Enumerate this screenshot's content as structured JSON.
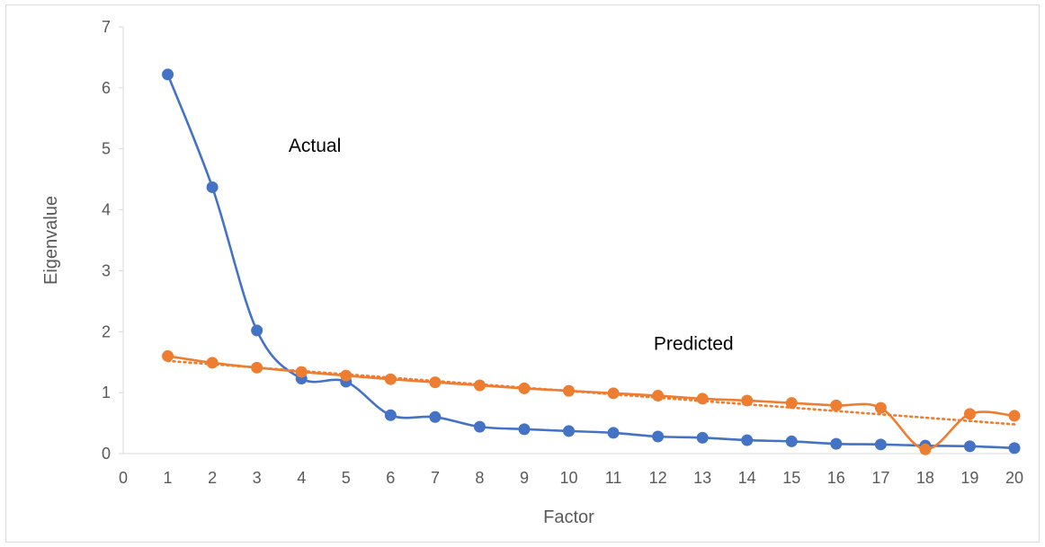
{
  "chart_data": {
    "type": "line",
    "xlabel": "Factor",
    "ylabel": "Eigenvalue",
    "xlim": [
      0,
      20
    ],
    "ylim": [
      0,
      7
    ],
    "x_ticks": [
      "0",
      "1",
      "2",
      "3",
      "4",
      "5",
      "6",
      "7",
      "8",
      "9",
      "10",
      "11",
      "12",
      "13",
      "14",
      "15",
      "16",
      "17",
      "18",
      "19",
      "20"
    ],
    "y_ticks": [
      "0",
      "1",
      "2",
      "3",
      "4",
      "5",
      "6",
      "7"
    ],
    "legend": "none",
    "grid": false,
    "x": [
      1,
      2,
      3,
      4,
      5,
      6,
      7,
      8,
      9,
      10,
      11,
      12,
      13,
      14,
      15,
      16,
      17,
      18,
      19,
      20
    ],
    "series": [
      {
        "color": "#4472c4",
        "smooth": true,
        "values": [
          6.22,
          4.37,
          2.02,
          1.23,
          1.18,
          0.63,
          0.6,
          0.44,
          0.4,
          0.37,
          0.34,
          0.28,
          0.26,
          0.22,
          0.2,
          0.16,
          0.15,
          0.13,
          0.12,
          0.09
        ]
      },
      {
        "color": "#ed7d31",
        "smooth": true,
        "values": [
          1.6,
          1.49,
          1.41,
          1.34,
          1.28,
          1.22,
          1.17,
          1.12,
          1.07,
          1.03,
          0.99,
          0.95,
          0.9,
          0.87,
          0.83,
          0.79,
          0.75,
          0.07,
          0.65,
          0.62
        ]
      }
    ],
    "trendline": {
      "color": "#ed7d31",
      "style": "dotted",
      "type": "linear",
      "from": [
        1,
        1.52
      ],
      "to": [
        20,
        0.48
      ]
    },
    "annotations": [
      {
        "text": "Actual",
        "x": 4.3,
        "y": 4.95
      },
      {
        "text": "Predicted",
        "x": 12.8,
        "y": 1.7
      }
    ]
  }
}
